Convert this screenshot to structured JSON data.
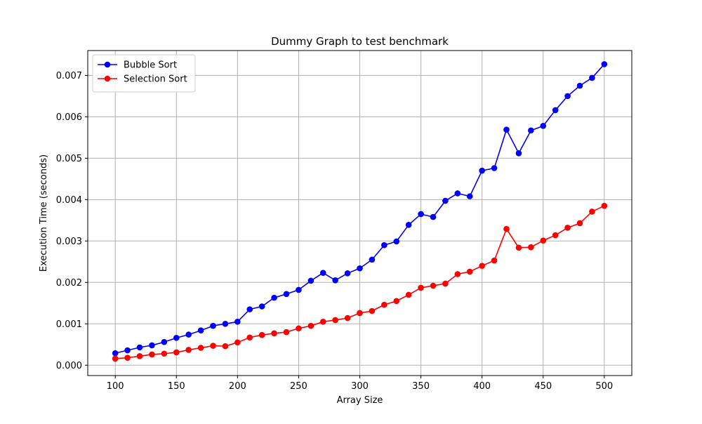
{
  "chart_data": {
    "type": "line",
    "title": "Dummy Graph to test benchmark",
    "xlabel": "Array Size",
    "ylabel": "Execution Time (seconds)",
    "xlim": [
      77.5,
      522.5
    ],
    "ylim": [
      -0.00025,
      0.0076
    ],
    "xticks": [
      100,
      150,
      200,
      250,
      300,
      350,
      400,
      450,
      500
    ],
    "xtick_labels": [
      "100",
      "150",
      "200",
      "250",
      "300",
      "350",
      "400",
      "450",
      "500"
    ],
    "yticks": [
      0.0,
      0.001,
      0.002,
      0.003,
      0.004,
      0.005,
      0.006,
      0.007
    ],
    "ytick_labels": [
      "0.000",
      "0.001",
      "0.002",
      "0.003",
      "0.004",
      "0.005",
      "0.006",
      "0.007"
    ],
    "grid": true,
    "legend_position": "top-left",
    "x": [
      100,
      110,
      120,
      130,
      140,
      150,
      160,
      170,
      180,
      190,
      200,
      210,
      220,
      230,
      240,
      250,
      260,
      270,
      280,
      290,
      300,
      310,
      320,
      330,
      340,
      350,
      360,
      370,
      380,
      390,
      400,
      410,
      420,
      430,
      440,
      450,
      460,
      470,
      480,
      490,
      500
    ],
    "series": [
      {
        "name": "Bubble Sort",
        "color": "#0000ff",
        "marker": "circle",
        "values": [
          0.00029,
          0.00036,
          0.00043,
          0.00048,
          0.00056,
          0.00066,
          0.00074,
          0.00084,
          0.00095,
          0.001,
          0.00105,
          0.00135,
          0.00142,
          0.00163,
          0.00172,
          0.00182,
          0.00204,
          0.00223,
          0.00205,
          0.00222,
          0.00234,
          0.00255,
          0.0029,
          0.00299,
          0.00339,
          0.00365,
          0.00358,
          0.00397,
          0.00415,
          0.00408,
          0.0047,
          0.00476,
          0.00569,
          0.00512,
          0.00567,
          0.00578,
          0.00616,
          0.0065,
          0.00675,
          0.00694,
          0.00727
        ]
      },
      {
        "name": "Selection Sort",
        "color": "#ff0000",
        "marker": "circle",
        "values": [
          0.00016,
          0.00018,
          0.00022,
          0.00026,
          0.00028,
          0.00031,
          0.00037,
          0.00042,
          0.00047,
          0.00046,
          0.00055,
          0.00067,
          0.00073,
          0.00077,
          0.0008,
          0.00089,
          0.00095,
          0.00105,
          0.00109,
          0.00114,
          0.00126,
          0.00131,
          0.00146,
          0.00155,
          0.0017,
          0.00187,
          0.00192,
          0.00197,
          0.0022,
          0.00226,
          0.0024,
          0.00253,
          0.00329,
          0.00284,
          0.00285,
          0.00301,
          0.00314,
          0.00332,
          0.00343,
          0.00371,
          0.00385
        ]
      }
    ]
  }
}
